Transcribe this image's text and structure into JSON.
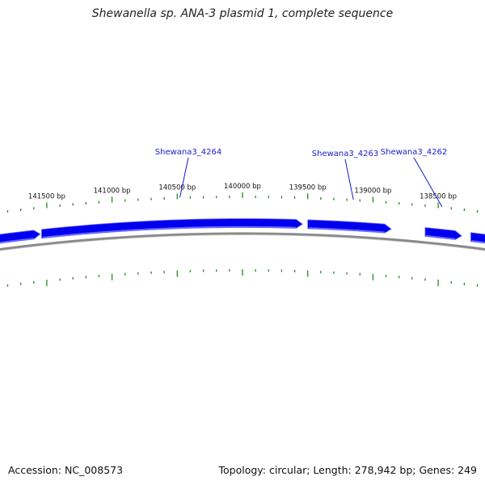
{
  "title": "Shewanella sp. ANA-3 plasmid 1, complete sequence",
  "footer": {
    "accession": "Accession: NC_008573",
    "summary": "Topology: circular; Length: 278,942 bp; Genes: 249"
  },
  "colors": {
    "gene_fill": "#0000ee",
    "gene_highlight": "#6a6aff",
    "backbone": "#8a8a8a",
    "tick": "#228b22",
    "gene_label": "#1a1acc"
  },
  "position_labels": [
    {
      "bp": 141500,
      "text": "141500 bp"
    },
    {
      "bp": 141000,
      "text": "141000 bp"
    },
    {
      "bp": 140500,
      "text": "140500 bp"
    },
    {
      "bp": 140000,
      "text": "140000 bp"
    },
    {
      "bp": 139500,
      "text": "139500 bp"
    },
    {
      "bp": 139000,
      "text": "139000 bp"
    },
    {
      "bp": 138500,
      "text": "138500 bp"
    }
  ],
  "gene_labels": [
    {
      "name": "Shewana3_4264",
      "bp": 140480
    },
    {
      "name": "Shewana3_4263",
      "bp": 139150
    },
    {
      "name": "Shewana3_4262",
      "bp": 138470
    }
  ],
  "genes": [
    {
      "start": 141900,
      "end": 141550,
      "strand": "-"
    },
    {
      "start": 141540,
      "end": 139540,
      "strand": "-"
    },
    {
      "start": 139500,
      "end": 138860,
      "strand": "-"
    },
    {
      "start": 138600,
      "end": 138320,
      "strand": "-"
    },
    {
      "start": 138250,
      "end": 137900,
      "strand": "-"
    }
  ]
}
